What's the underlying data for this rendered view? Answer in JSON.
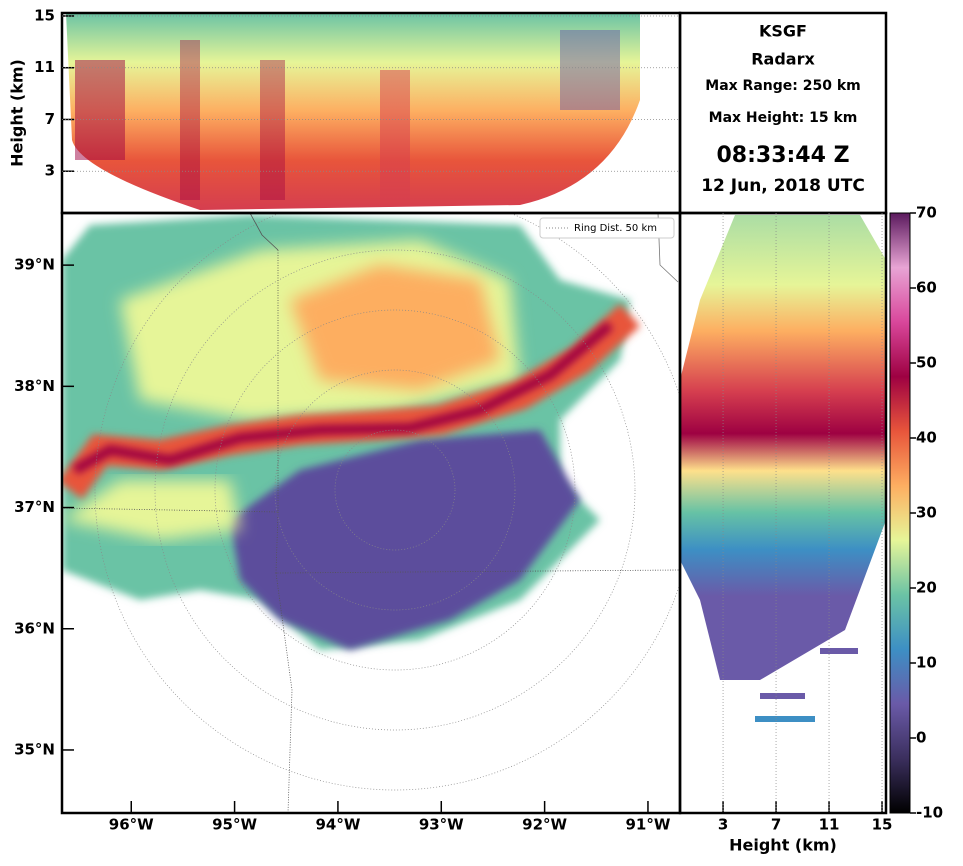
{
  "info": {
    "station": "KSGF",
    "product": "Radarx",
    "max_range": "Max Range: 250 km",
    "max_height": "Max Height: 15 km",
    "time": "08:33:44 Z",
    "date": "12 Jun, 2018 UTC"
  },
  "chart_data": [
    {
      "type": "heatmap",
      "ylabel": "Height (km)",
      "xlim": [
        -96.67,
        -90.69
      ],
      "ylim": [
        -0.23,
        15.23
      ],
      "yticks": [
        3,
        7,
        11,
        15
      ],
      "grid": true
    },
    {
      "type": "map",
      "legend_label": "Ring Dist. 50 km",
      "legend_position": "upper right",
      "xlim": [
        -96.67,
        -90.69
      ],
      "ylim": [
        34.48,
        39.43
      ],
      "xticks": [
        {
          "value": -96,
          "label": "96°W"
        },
        {
          "value": -95,
          "label": "95°W"
        },
        {
          "value": -94,
          "label": "94°W"
        },
        {
          "value": -93,
          "label": "93°W"
        },
        {
          "value": -92,
          "label": "92°W"
        },
        {
          "value": -91,
          "label": "91°W"
        }
      ],
      "yticks": [
        {
          "value": 35,
          "label": "35°N"
        },
        {
          "value": 36,
          "label": "36°N"
        },
        {
          "value": 37,
          "label": "37°N"
        },
        {
          "value": 38,
          "label": "38°N"
        },
        {
          "value": 39,
          "label": "39°N"
        }
      ],
      "grid": false
    },
    {
      "type": "heatmap",
      "xlabel": "Height (km)",
      "xlim": [
        -0.25,
        15.3
      ],
      "xticks": [
        3,
        7,
        11,
        15
      ],
      "ylim": [
        34.48,
        39.43
      ],
      "grid": true
    },
    {
      "type": "colorbar",
      "ylim": [
        -10,
        70
      ],
      "yticks": [
        -10,
        0,
        10,
        20,
        30,
        40,
        50,
        60,
        70
      ],
      "colors": [
        "#000000",
        "#3b2f5e",
        "#6a5aa8",
        "#3d8fc4",
        "#6bc3a5",
        "#e6f598",
        "#fdae61",
        "#e8553b",
        "#9e0142",
        "#d9479b",
        "#e8a4d4",
        "#5b1a5e"
      ]
    }
  ]
}
